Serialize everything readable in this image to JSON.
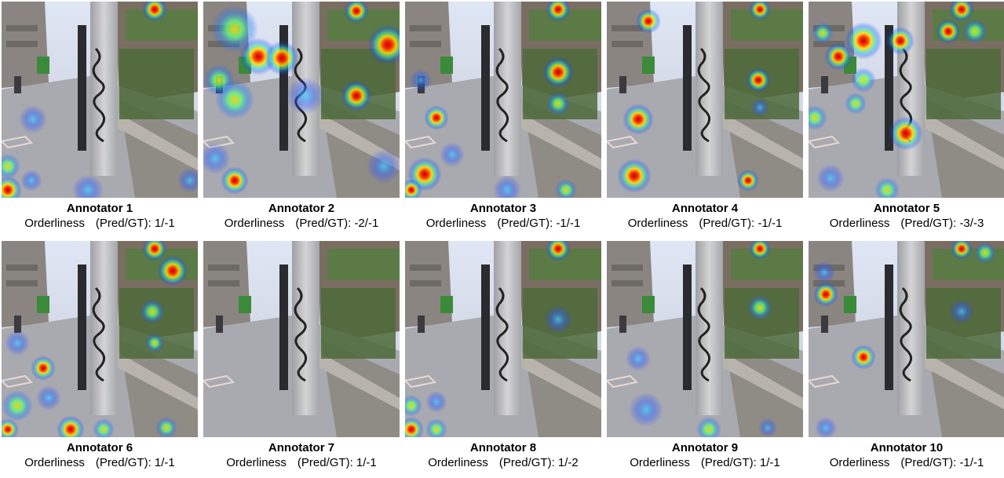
{
  "annotators": [
    {
      "title": "Annotator 1",
      "metric": "Orderliness",
      "label": "(Pred/GT):",
      "value": "1/-1"
    },
    {
      "title": "Annotator 2",
      "metric": "Orderliness",
      "label": "(Pred/GT):",
      "value": "-2/-1"
    },
    {
      "title": "Annotator 3",
      "metric": "Orderliness",
      "label": "(Pred/GT):",
      "value": "-1/-1"
    },
    {
      "title": "Annotator 4",
      "metric": "Orderliness",
      "label": "(Pred/GT):",
      "value": "-1/-1"
    },
    {
      "title": "Annotator 5",
      "metric": "Orderliness",
      "label": "(Pred/GT):",
      "value": "-3/-3"
    },
    {
      "title": "Annotator 6",
      "metric": "Orderliness",
      "label": "(Pred/GT):",
      "value": "1/-1"
    },
    {
      "title": "Annotator 7",
      "metric": "Orderliness",
      "label": "(Pred/GT):",
      "value": "1/-1"
    },
    {
      "title": "Annotator 8",
      "metric": "Orderliness",
      "label": "(Pred/GT):",
      "value": "1/-2"
    },
    {
      "title": "Annotator 9",
      "metric": "Orderliness",
      "label": "(Pred/GT):",
      "value": "1/-1"
    },
    {
      "title": "Annotator 10",
      "metric": "Orderliness",
      "label": "(Pred/GT):",
      "value": "-1/-1"
    }
  ]
}
